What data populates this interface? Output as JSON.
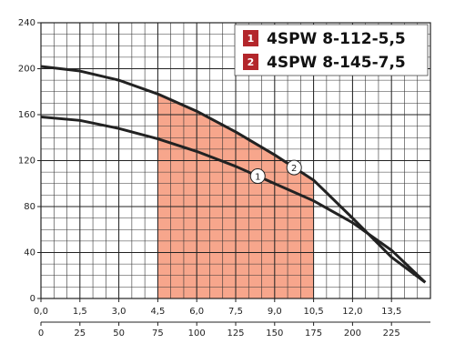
{
  "chart_data": {
    "type": "line",
    "xlim": [
      0,
      15
    ],
    "xticks": [
      {
        "value": 0,
        "label": "0,0"
      },
      {
        "value": 1.5,
        "label": "1,5"
      },
      {
        "value": 3,
        "label": "3,0"
      },
      {
        "value": 4.5,
        "label": "4,5"
      },
      {
        "value": 6,
        "label": "6,0"
      },
      {
        "value": 7.5,
        "label": "7,5"
      },
      {
        "value": 9,
        "label": "9,0"
      },
      {
        "value": 10.5,
        "label": "10,5"
      },
      {
        "value": 12,
        "label": "12,0"
      },
      {
        "value": 13.5,
        "label": "13,5"
      }
    ],
    "x2lim": [
      0,
      250
    ],
    "x2ticks": [
      0,
      25,
      50,
      75,
      100,
      125,
      150,
      175,
      200,
      225
    ],
    "ylim": [
      0,
      240
    ],
    "yticks": [
      0,
      40,
      80,
      120,
      160,
      200,
      240
    ],
    "grid": true,
    "x": [
      0,
      1.5,
      3,
      4.5,
      6,
      7.5,
      9,
      10.5,
      12,
      13.5,
      14.8
    ],
    "series": [
      {
        "name": "4SPW 8-112-5,5",
        "number": "1",
        "color": "#222222",
        "values": [
          158,
          155,
          148,
          139,
          128,
          115,
          100,
          85,
          66,
          42,
          14
        ]
      },
      {
        "name": "4SPW 8-145-7,5",
        "number": "2",
        "color": "#222222",
        "values": [
          202,
          198,
          190,
          178,
          163,
          145,
          125,
          103,
          70,
          36,
          14
        ]
      }
    ],
    "legend_color": "#b3262b",
    "shade": {
      "x_start": 4.5,
      "x_end": 10.5,
      "color": "#f7a68c"
    }
  }
}
